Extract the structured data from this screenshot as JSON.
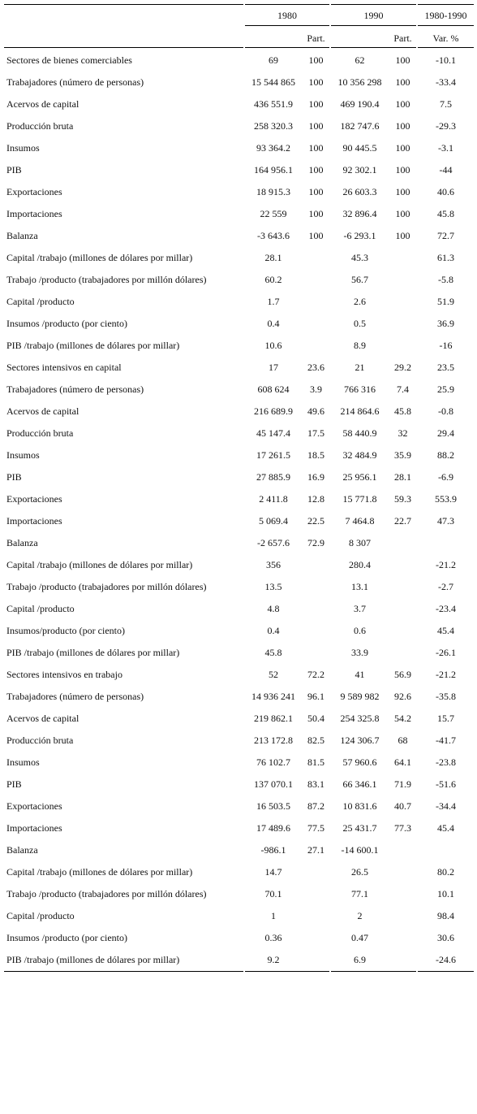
{
  "header": {
    "year1": "1980",
    "year2": "1990",
    "period": "1980-1990",
    "part1": "Part.",
    "part2": "Part.",
    "var": "Var. %"
  },
  "rows": [
    {
      "label": "Sectores de bienes comerciables",
      "v80": "69",
      "p80": "100",
      "v90": "62",
      "p90": "100",
      "var": "-10.1"
    },
    {
      "label": "Trabajadores (número de personas)",
      "v80": "15 544 865",
      "p80": "100",
      "v90": "10 356 298",
      "p90": "100",
      "var": "-33.4"
    },
    {
      "label": "Acervos de capital",
      "v80": "436 551.9",
      "p80": "100",
      "v90": "469 190.4",
      "p90": "100",
      "var": "7.5"
    },
    {
      "label": "Producción bruta",
      "v80": "258 320.3",
      "p80": "100",
      "v90": "182 747.6",
      "p90": "100",
      "var": "-29.3"
    },
    {
      "label": "Insumos",
      "v80": "93 364.2",
      "p80": "100",
      "v90": "90 445.5",
      "p90": "100",
      "var": "-3.1"
    },
    {
      "label": "PIB",
      "v80": "164 956.1",
      "p80": "100",
      "v90": "92 302.1",
      "p90": "100",
      "var": "-44"
    },
    {
      "label": "Exportaciones",
      "v80": "18 915.3",
      "p80": "100",
      "v90": "26 603.3",
      "p90": "100",
      "var": "40.6"
    },
    {
      "label": "Importaciones",
      "v80": "22 559",
      "p80": "100",
      "v90": "32 896.4",
      "p90": "100",
      "var": "45.8"
    },
    {
      "label": "Balanza",
      "v80": "-3 643.6",
      "p80": "100",
      "v90": "-6 293.1",
      "p90": "100",
      "var": "72.7"
    },
    {
      "label": "Capital /trabajo (millones de dólares por millar)",
      "v80": "28.1",
      "p80": "",
      "v90": "45.3",
      "p90": "",
      "var": "61.3"
    },
    {
      "label": "Trabajo /producto (trabajadores por millón dólares)",
      "v80": "60.2",
      "p80": "",
      "v90": "56.7",
      "p90": "",
      "var": "-5.8"
    },
    {
      "label": "Capital /producto",
      "v80": "1.7",
      "p80": "",
      "v90": "2.6",
      "p90": "",
      "var": "51.9"
    },
    {
      "label": "Insumos /producto (por ciento)",
      "v80": "0.4",
      "p80": "",
      "v90": "0.5",
      "p90": "",
      "var": "36.9"
    },
    {
      "label": "PIB /trabajo (millones de dólares por millar)",
      "v80": "10.6",
      "p80": "",
      "v90": "8.9",
      "p90": "",
      "var": "-16"
    },
    {
      "label": "Sectores intensivos en capital",
      "v80": "17",
      "p80": "23.6",
      "v90": "21",
      "p90": "29.2",
      "var": "23.5"
    },
    {
      "label": "Trabajadores (número de personas)",
      "v80": "608 624",
      "p80": "3.9",
      "v90": "766 316",
      "p90": "7.4",
      "var": "25.9"
    },
    {
      "label": "Acervos de capital",
      "v80": "216 689.9",
      "p80": "49.6",
      "v90": "214 864.6",
      "p90": "45.8",
      "var": "-0.8"
    },
    {
      "label": "Producción bruta",
      "v80": "45 147.4",
      "p80": "17.5",
      "v90": "58 440.9",
      "p90": "32",
      "var": "29.4"
    },
    {
      "label": "Insumos",
      "v80": "17 261.5",
      "p80": "18.5",
      "v90": "32 484.9",
      "p90": "35.9",
      "var": "88.2"
    },
    {
      "label": "PIB",
      "v80": "27 885.9",
      "p80": "16.9",
      "v90": "25 956.1",
      "p90": "28.1",
      "var": "-6.9"
    },
    {
      "label": "Exportaciones",
      "v80": "2 411.8",
      "p80": "12.8",
      "v90": "15 771.8",
      "p90": "59.3",
      "var": "553.9"
    },
    {
      "label": "Importaciones",
      "v80": "5 069.4",
      "p80": "22.5",
      "v90": "7 464.8",
      "p90": "22.7",
      "var": "47.3"
    },
    {
      "label": "Balanza",
      "v80": "-2 657.6",
      "p80": "72.9",
      "v90": "8 307",
      "p90": "",
      "var": ""
    },
    {
      "label": "Capital /trabajo (millones de dólares por millar)",
      "v80": "356",
      "p80": "",
      "v90": "280.4",
      "p90": "",
      "var": "-21.2"
    },
    {
      "label": "Trabajo /producto (trabajadores por millón dólares)",
      "v80": "13.5",
      "p80": "",
      "v90": "13.1",
      "p90": "",
      "var": "-2.7"
    },
    {
      "label": "Capital /producto",
      "v80": "4.8",
      "p80": "",
      "v90": "3.7",
      "p90": "",
      "var": "-23.4"
    },
    {
      "label": "Insumos/producto (por ciento)",
      "v80": "0.4",
      "p80": "",
      "v90": "0.6",
      "p90": "",
      "var": "45.4"
    },
    {
      "label": "PIB /trabajo (millones de dólares por millar)",
      "v80": "45.8",
      "p80": "",
      "v90": "33.9",
      "p90": "",
      "var": "-26.1"
    },
    {
      "label": "Sectores intensivos en trabajo",
      "v80": "52",
      "p80": "72.2",
      "v90": "41",
      "p90": "56.9",
      "var": "-21.2"
    },
    {
      "label": "Trabajadores (número de personas)",
      "v80": "14 936 241",
      "p80": "96.1",
      "v90": "9 589 982",
      "p90": "92.6",
      "var": "-35.8"
    },
    {
      "label": "Acervos de capital",
      "v80": "219 862.1",
      "p80": "50.4",
      "v90": "254 325.8",
      "p90": "54.2",
      "var": "15.7"
    },
    {
      "label": "Producción bruta",
      "v80": "213 172.8",
      "p80": "82.5",
      "v90": "124 306.7",
      "p90": "68",
      "var": "-41.7"
    },
    {
      "label": "Insumos",
      "v80": "76 102.7",
      "p80": "81.5",
      "v90": "57 960.6",
      "p90": "64.1",
      "var": "-23.8"
    },
    {
      "label": "PIB",
      "v80": "137 070.1",
      "p80": "83.1",
      "v90": "66 346.1",
      "p90": "71.9",
      "var": "-51.6"
    },
    {
      "label": "Exportaciones",
      "v80": "16 503.5",
      "p80": "87.2",
      "v90": "10 831.6",
      "p90": "40.7",
      "var": "-34.4"
    },
    {
      "label": "Importaciones",
      "v80": "17 489.6",
      "p80": "77.5",
      "v90": "25 431.7",
      "p90": "77.3",
      "var": "45.4"
    },
    {
      "label": "Balanza",
      "v80": "-986.1",
      "p80": "27.1",
      "v90": "-14 600.1",
      "p90": "",
      "var": ""
    },
    {
      "label": "Capital /trabajo (millones de dólares por millar)",
      "v80": "14.7",
      "p80": "",
      "v90": "26.5",
      "p90": "",
      "var": "80.2"
    },
    {
      "label": "Trabajo /producto (trabajadores por millón dólares)",
      "v80": "70.1",
      "p80": "",
      "v90": "77.1",
      "p90": "",
      "var": "10.1"
    },
    {
      "label": "Capital /producto",
      "v80": "1",
      "p80": "",
      "v90": "2",
      "p90": "",
      "var": "98.4"
    },
    {
      "label": "Insumos /producto (por ciento)",
      "v80": "0.36",
      "p80": "",
      "v90": "0.47",
      "p90": "",
      "var": "30.6"
    },
    {
      "label": "PIB /trabajo (millones de dólares por millar)",
      "v80": "9.2",
      "p80": "",
      "v90": "6.9",
      "p90": "",
      "var": "-24.6"
    }
  ]
}
